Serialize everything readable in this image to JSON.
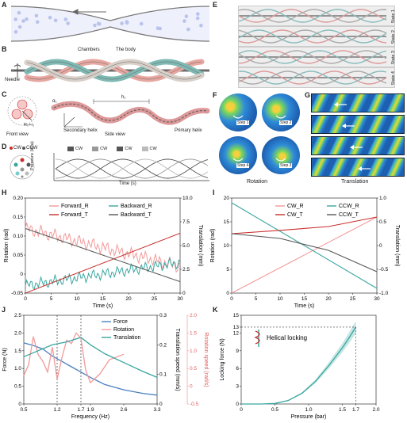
{
  "panels": {
    "A": "A",
    "B": "B",
    "C": "C",
    "D": "D",
    "E": "E",
    "F": "F",
    "G": "G",
    "H": "H",
    "I": "I",
    "J": "J",
    "K": "K"
  },
  "B": {
    "chambers": "Chambers",
    "body": "The body",
    "needle": "Needle"
  },
  "C": {
    "front_view": "Front view",
    "side_view": "Side view",
    "secondary_helix": "Secondary helix",
    "primary_helix": "Primary helix",
    "r_label": "R₀+r₁",
    "h1": "h₁",
    "alpha": "α₁",
    "n": "n₁",
    "r2": "r₂"
  },
  "D": {
    "cw": "CW",
    "ccw": "CCW",
    "legend": [
      "CW",
      "CW",
      "CW",
      "CW"
    ],
    "ylabel": "Pressure (kPa)",
    "xlabel": "Time (s)"
  },
  "E": {
    "states": [
      "State 1",
      "State 2",
      "State 3",
      "State 4"
    ]
  },
  "F": {
    "steps": [
      "Step 1",
      "Step 2",
      "Step 4",
      "Step 3"
    ],
    "caption": "Rotation"
  },
  "G": {
    "caption": "Translation"
  },
  "colors": {
    "pink": "#f29a9a",
    "red": "#c8302c",
    "teal": "#3aa6a0",
    "dark": "#555555",
    "blue": "#4a7fc1",
    "bead": "#b9c3ec"
  },
  "chart_data": [
    {
      "panel": "H",
      "type": "line",
      "xlabel": "Time (s)",
      "ylabel": "Rotation (rad)",
      "y2label": "Translation (mm)",
      "xlim": [
        0,
        30
      ],
      "ylim": [
        -0.05,
        0.2
      ],
      "y2lim": [
        0,
        10
      ],
      "xticks": [
        "0",
        "5",
        "10",
        "15",
        "20",
        "25",
        "30"
      ],
      "yticks": [
        "-0.05",
        "0",
        "0.05",
        "0.10",
        "0.15",
        "0.20"
      ],
      "y2ticks": [
        "0",
        "2.5",
        "5.0",
        "7.5",
        "10.0"
      ],
      "series": [
        {
          "name": "Forward_R",
          "axis": "left",
          "color": "#f29a9a",
          "noise": 0.012,
          "x": [
            0,
            30
          ],
          "y": [
            0.12,
            0.02
          ]
        },
        {
          "name": "Backward_R",
          "axis": "left",
          "color": "#3aa6a0",
          "noise": 0.01,
          "x": [
            0,
            30
          ],
          "y": [
            -0.03,
            0.03
          ]
        },
        {
          "name": "Forward_T",
          "axis": "right",
          "color": "#c8302c",
          "x": [
            0,
            30
          ],
          "y": [
            0,
            6.3
          ]
        },
        {
          "name": "Backward_T",
          "axis": "right",
          "color": "#555555",
          "x": [
            0,
            30
          ],
          "y": [
            6.8,
            1.2
          ]
        }
      ]
    },
    {
      "panel": "I",
      "type": "line",
      "xlabel": "Time (s)",
      "ylabel": "Rotation (rad)",
      "y2label": "Translation (mm)",
      "xlim": [
        0,
        30
      ],
      "ylim": [
        0,
        20
      ],
      "y2lim": [
        -1,
        1
      ],
      "xticks": [
        "0",
        "5",
        "10",
        "15",
        "20",
        "25",
        "30"
      ],
      "yticks": [
        "0",
        "5",
        "10",
        "15",
        "20"
      ],
      "y2ticks": [
        "-1.0",
        "-0.5",
        "0",
        "0.5",
        "1.0"
      ],
      "series": [
        {
          "name": "CW_R",
          "axis": "left",
          "color": "#f29a9a",
          "x": [
            0,
            30
          ],
          "y": [
            0,
            16
          ]
        },
        {
          "name": "CCW_R",
          "axis": "left",
          "color": "#3aa6a0",
          "x": [
            0,
            30
          ],
          "y": [
            19,
            1
          ]
        },
        {
          "name": "CW_T",
          "axis": "right",
          "color": "#c8302c",
          "x": [
            0,
            10,
            20,
            30
          ],
          "y": [
            0.25,
            0.32,
            0.4,
            0.6
          ]
        },
        {
          "name": "CCW_T",
          "axis": "right",
          "color": "#555555",
          "x": [
            0,
            10,
            20,
            30
          ],
          "y": [
            0.25,
            0.15,
            -0.1,
            -0.55
          ]
        }
      ]
    },
    {
      "panel": "J",
      "type": "line",
      "xlabel": "Frequency (Hz)",
      "ylabel": "Force (N)",
      "y2label": "Translation speed (mm/s)",
      "y3label": "Rotation speed (rad/s)",
      "xlim": [
        0.5,
        3.3
      ],
      "ylim": [
        0,
        2.5
      ],
      "y2lim": [
        0,
        0.3
      ],
      "y3lim": [
        -0.5,
        2.0
      ],
      "xticks": [
        "0.5",
        "1.2",
        "1.7",
        "1.9",
        "2.6",
        "3.3"
      ],
      "xtick_values": [
        0.5,
        1.2,
        1.7,
        1.9,
        2.6,
        3.3
      ],
      "yticks": [
        "0",
        "0.5",
        "1.0",
        "1.5",
        "2.0",
        "2.5"
      ],
      "y2ticks": [
        "0",
        "0.1",
        "0.2",
        "0.3"
      ],
      "y3ticks": [
        "-0.5",
        "0",
        "0.5",
        "1.0",
        "1.5",
        "2.0"
      ],
      "vlines": [
        1.2,
        1.7
      ],
      "series": [
        {
          "name": "Force",
          "axis": "left",
          "color": "#4a7fc1",
          "x": [
            0.5,
            0.7,
            0.9,
            1.1,
            1.3,
            1.5,
            1.7,
            1.9,
            2.2,
            2.6,
            3.0,
            3.3
          ],
          "y": [
            1.72,
            1.65,
            1.55,
            1.35,
            1.2,
            1.05,
            0.9,
            0.75,
            0.55,
            0.4,
            0.3,
            0.25
          ]
        },
        {
          "name": "Rotation",
          "axis": "y3",
          "color": "#f29a9a",
          "x": [
            0.5,
            0.6,
            0.7,
            0.8,
            0.9,
            1.0,
            1.1,
            1.2,
            1.3,
            1.4,
            1.5,
            1.6,
            1.7,
            1.8,
            1.9,
            2.1,
            2.3,
            2.6
          ],
          "y": [
            0.3,
            0.6,
            1.4,
            0.9,
            0.7,
            0.4,
            1.1,
            0.2,
            0.8,
            1.3,
            1.2,
            1.5,
            1.35,
            0.45,
            0.1,
            0.35,
            0.75,
            0.9
          ]
        },
        {
          "name": "Translation",
          "axis": "right",
          "color": "#3aa6a0",
          "x": [
            0.5,
            0.8,
            1.1,
            1.4,
            1.7,
            1.9,
            2.2,
            2.6,
            3.0,
            3.3
          ],
          "y": [
            0.16,
            0.18,
            0.2,
            0.21,
            0.225,
            0.2,
            0.17,
            0.14,
            0.11,
            0.09
          ]
        }
      ]
    },
    {
      "panel": "K",
      "type": "line",
      "xlabel": "Pressure (bar)",
      "ylabel": "Locking force (N)",
      "xlim": [
        0,
        2.0
      ],
      "ylim": [
        0,
        15
      ],
      "xticks": [
        "0",
        "0.5",
        "1.0",
        "1.5",
        "1.7",
        "2.0"
      ],
      "xtick_values": [
        0,
        0.5,
        1.0,
        1.5,
        1.7,
        2.0
      ],
      "yticks": [
        "0",
        "3",
        "6",
        "9",
        "12",
        "13",
        "15"
      ],
      "ytick_values": [
        0,
        3,
        6,
        9,
        12,
        13,
        15
      ],
      "annotation": "Helical locking",
      "series": [
        {
          "name": "Locking force",
          "color": "#3aa6a0",
          "x": [
            0,
            0.3,
            0.5,
            0.7,
            0.9,
            1.1,
            1.3,
            1.5,
            1.6,
            1.7
          ],
          "y": [
            0,
            0,
            0.1,
            0.6,
            1.8,
            3.8,
            6.5,
            9.5,
            11.2,
            13
          ]
        }
      ]
    }
  ]
}
